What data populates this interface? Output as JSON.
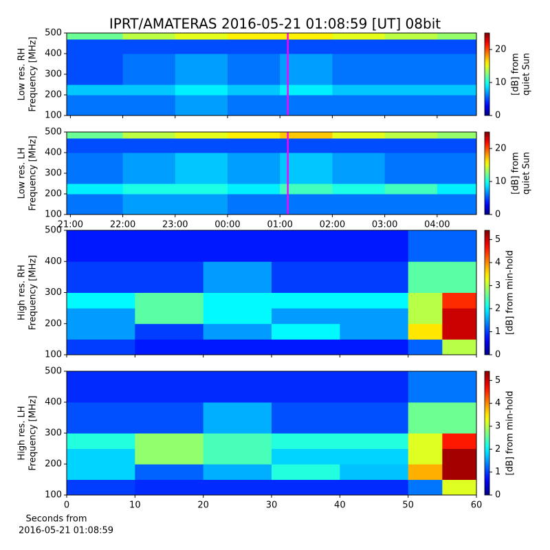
{
  "chart_data": [
    {
      "type": "heatmap",
      "title": "IPRT/AMATERAS 2016-05-21 01:08:59 [UT]   08bit",
      "ylabel": [
        "Low res. RH",
        "Frequency [MHz]"
      ],
      "xlim": [
        20.93,
        28.75
      ],
      "xticks": [
        21,
        22,
        23,
        24,
        25,
        26,
        27,
        28
      ],
      "xtick_labels": false,
      "ylim": [
        100,
        500
      ],
      "yticks": [
        100,
        200,
        300,
        400,
        500
      ],
      "x_edges": [
        20.93,
        22,
        23,
        24,
        25,
        26,
        27,
        28,
        28.75
      ],
      "y_edges": [
        100,
        200,
        250,
        400,
        470,
        500
      ],
      "z": [
        [
          6,
          6,
          7,
          6,
          6,
          6,
          6,
          6
        ],
        [
          8,
          8,
          9,
          8,
          9,
          8,
          8,
          8
        ],
        [
          5,
          6,
          7,
          6,
          7,
          6,
          6,
          6
        ],
        [
          5,
          5,
          5,
          5,
          5,
          5,
          5,
          5
        ],
        [
          12,
          14,
          15,
          16,
          16,
          15,
          14,
          13
        ]
      ],
      "marker_x": 25.15,
      "marker_color": "#ff00ff",
      "colorbar": {
        "label": [
          "[dB] from",
          "quiet Sun"
        ],
        "lim": [
          0,
          25
        ],
        "ticks": [
          0,
          10,
          20
        ]
      }
    },
    {
      "type": "heatmap",
      "ylabel": [
        "Low res. LH",
        "Frequency [MHz]"
      ],
      "xlim": [
        20.93,
        28.75
      ],
      "xticks": [
        {
          "value": 21,
          "label": "21:00"
        },
        {
          "value": 22,
          "label": "22:00"
        },
        {
          "value": 23,
          "label": "23:00"
        },
        {
          "value": 24,
          "label": "00:00"
        },
        {
          "value": 25,
          "label": "01:00"
        },
        {
          "value": 26,
          "label": "02:00"
        },
        {
          "value": 27,
          "label": "03:00"
        },
        {
          "value": 28,
          "label": "04:00"
        }
      ],
      "xtick_labels": true,
      "ylim": [
        100,
        500
      ],
      "yticks": [
        100,
        200,
        300,
        400,
        500
      ],
      "x_edges": [
        20.93,
        22,
        23,
        24,
        25,
        26,
        27,
        28,
        28.75
      ],
      "y_edges": [
        100,
        200,
        250,
        400,
        470,
        500
      ],
      "z": [
        [
          6,
          7,
          7,
          6,
          6,
          6,
          6,
          6
        ],
        [
          9,
          10,
          10,
          9,
          11,
          10,
          11,
          9
        ],
        [
          6,
          7,
          8,
          7,
          8,
          7,
          6,
          6
        ],
        [
          5,
          5,
          5,
          5,
          5,
          5,
          5,
          5
        ],
        [
          12,
          14,
          15,
          16,
          17,
          15,
          14,
          13
        ]
      ],
      "marker_x": 25.15,
      "marker_color": "#ff00ff",
      "colorbar": {
        "label": [
          "[dB] from",
          "quiet Sun"
        ],
        "lim": [
          0,
          25
        ],
        "ticks": [
          0,
          10,
          20
        ]
      }
    },
    {
      "type": "heatmap",
      "ylabel": [
        "High res. RH",
        "Frequency [MHz]"
      ],
      "xlim": [
        0,
        60
      ],
      "xticks": [
        0,
        10,
        20,
        30,
        40,
        50,
        60
      ],
      "xtick_labels": false,
      "ylim": [
        100,
        500
      ],
      "yticks": [
        100,
        200,
        300,
        400,
        500
      ],
      "x_edges": [
        0,
        10,
        20,
        30,
        40,
        50,
        55,
        60
      ],
      "y_edges": [
        100,
        150,
        200,
        250,
        300,
        400,
        500
      ],
      "z": [
        [
          1,
          0.8,
          0.8,
          0.8,
          0.8,
          1.2,
          3
        ],
        [
          1.5,
          1,
          1.5,
          2,
          1.5,
          3.5,
          5
        ],
        [
          1.5,
          2.5,
          2,
          1.5,
          1.5,
          3,
          5
        ],
        [
          2,
          2.5,
          2,
          2,
          2,
          3,
          4.5
        ],
        [
          1,
          1,
          1.5,
          1,
          1,
          2.5,
          2.5
        ],
        [
          0.8,
          0.8,
          0.8,
          0.8,
          0.8,
          1.2,
          1.2
        ]
      ],
      "colorbar": {
        "label": [
          "[dB] from min-hold"
        ],
        "lim": [
          0,
          5.4
        ],
        "ticks": [
          0,
          1,
          2,
          3,
          4,
          5
        ]
      }
    },
    {
      "type": "heatmap",
      "ylabel": [
        "High res. LH",
        "Frequency [MHz]"
      ],
      "xlabel": [
        "Seconds from",
        "2016-05-21 01:08:59"
      ],
      "xlim": [
        0,
        60
      ],
      "xticks": [
        0,
        10,
        20,
        30,
        40,
        50,
        60
      ],
      "xtick_labels": true,
      "ylim": [
        100,
        500
      ],
      "yticks": [
        100,
        200,
        300,
        400,
        500
      ],
      "x_edges": [
        0,
        10,
        20,
        30,
        40,
        50,
        55,
        60
      ],
      "y_edges": [
        100,
        150,
        200,
        250,
        300,
        400,
        500
      ],
      "z": [
        [
          1,
          0.9,
          0.9,
          0.9,
          0.9,
          1.3,
          3.2
        ],
        [
          1.8,
          1.2,
          1.6,
          2.2,
          1.7,
          3.8,
          5.2
        ],
        [
          1.8,
          2.8,
          2.4,
          1.8,
          1.8,
          3.2,
          5.2
        ],
        [
          2.2,
          2.8,
          2.4,
          2.2,
          2.2,
          3.2,
          4.6
        ],
        [
          1.1,
          1.1,
          1.6,
          1.1,
          1.1,
          2.6,
          2.6
        ],
        [
          0.9,
          0.9,
          0.9,
          0.9,
          0.9,
          1.3,
          1.3
        ]
      ],
      "colorbar": {
        "label": [
          "[dB] from min-hold"
        ],
        "lim": [
          0,
          5.4
        ],
        "ticks": [
          0,
          1,
          2,
          3,
          4,
          5
        ]
      }
    }
  ]
}
